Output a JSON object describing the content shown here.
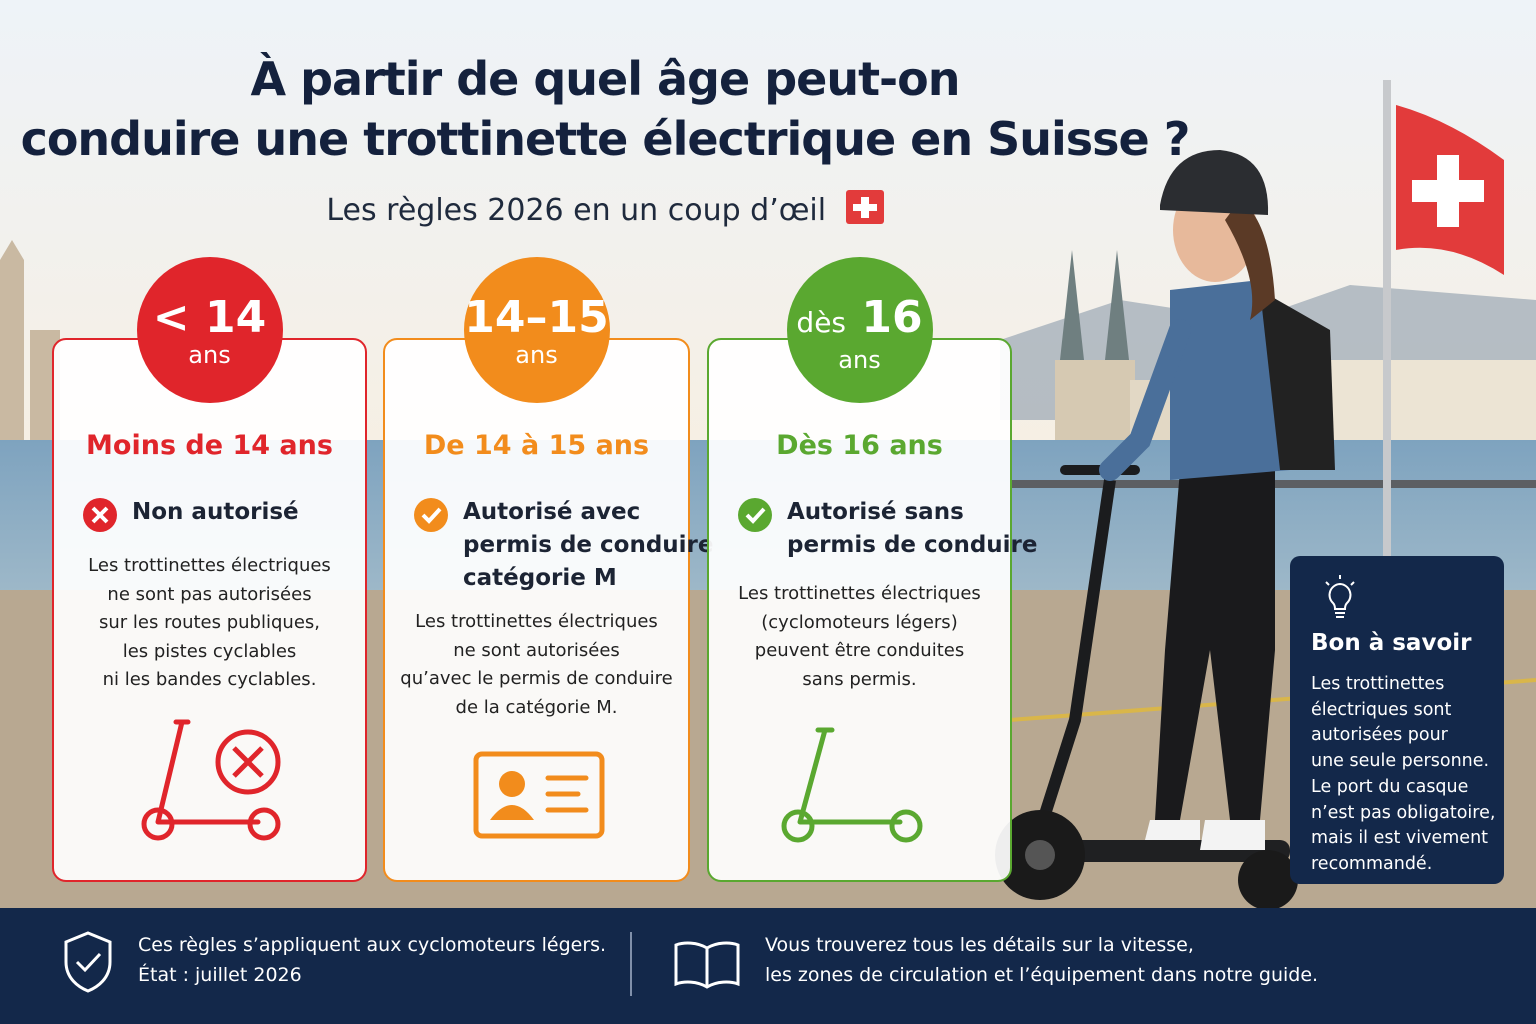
{
  "header": {
    "title_lines": [
      "À partir de quel âge peut-on",
      "conduire une trottinette électrique en Suisse ?"
    ],
    "subtitle": "Les règles 2026 en un coup d’œil"
  },
  "cards": [
    {
      "badge_prefix": null,
      "badge_main": "< 14",
      "badge_sub": "ans",
      "heading": "Moins de 14 ans",
      "status_lines": [
        "Non autorisé"
      ],
      "description_lines": [
        "Les trottinettes électriques",
        "ne sont pas autorisées",
        "sur les routes publiques,",
        "les pistes cyclables",
        "ni les bandes cyclables."
      ]
    },
    {
      "badge_prefix": null,
      "badge_main": "14–15",
      "badge_sub": "ans",
      "heading": "De 14 à 15 ans",
      "status_lines": [
        "Autorisé avec",
        "permis de conduire",
        "catégorie M"
      ],
      "description_lines": [
        "Les trottinettes électriques",
        "ne sont autorisées",
        "qu’avec le permis de conduire",
        "de la catégorie M."
      ]
    },
    {
      "badge_prefix": "dès",
      "badge_main": "16",
      "badge_sub": "ans",
      "heading": "Dès 16 ans",
      "status_lines": [
        "Autorisé sans",
        "permis de conduire"
      ],
      "description_lines": [
        "Les trottinettes électriques",
        "(cyclomoteurs légers)",
        "peuvent être conduites",
        "sans permis."
      ]
    }
  ],
  "tip": {
    "title": "Bon à savoir",
    "lines": [
      "Les trottinettes",
      "électriques sont",
      "autorisées pour",
      "une seule personne.",
      "Le port du casque",
      "n’est pas obligatoire,",
      "mais il est vivement",
      "recommandé."
    ]
  },
  "footer": {
    "left_lines": [
      "Ces règles s’appliquent aux cyclomoteurs légers.",
      "État : juillet 2026"
    ],
    "right_lines": [
      "Vous trouverez tous les détails sur la vitesse,",
      "les zones de circulation et l’équipement dans notre guide."
    ]
  }
}
